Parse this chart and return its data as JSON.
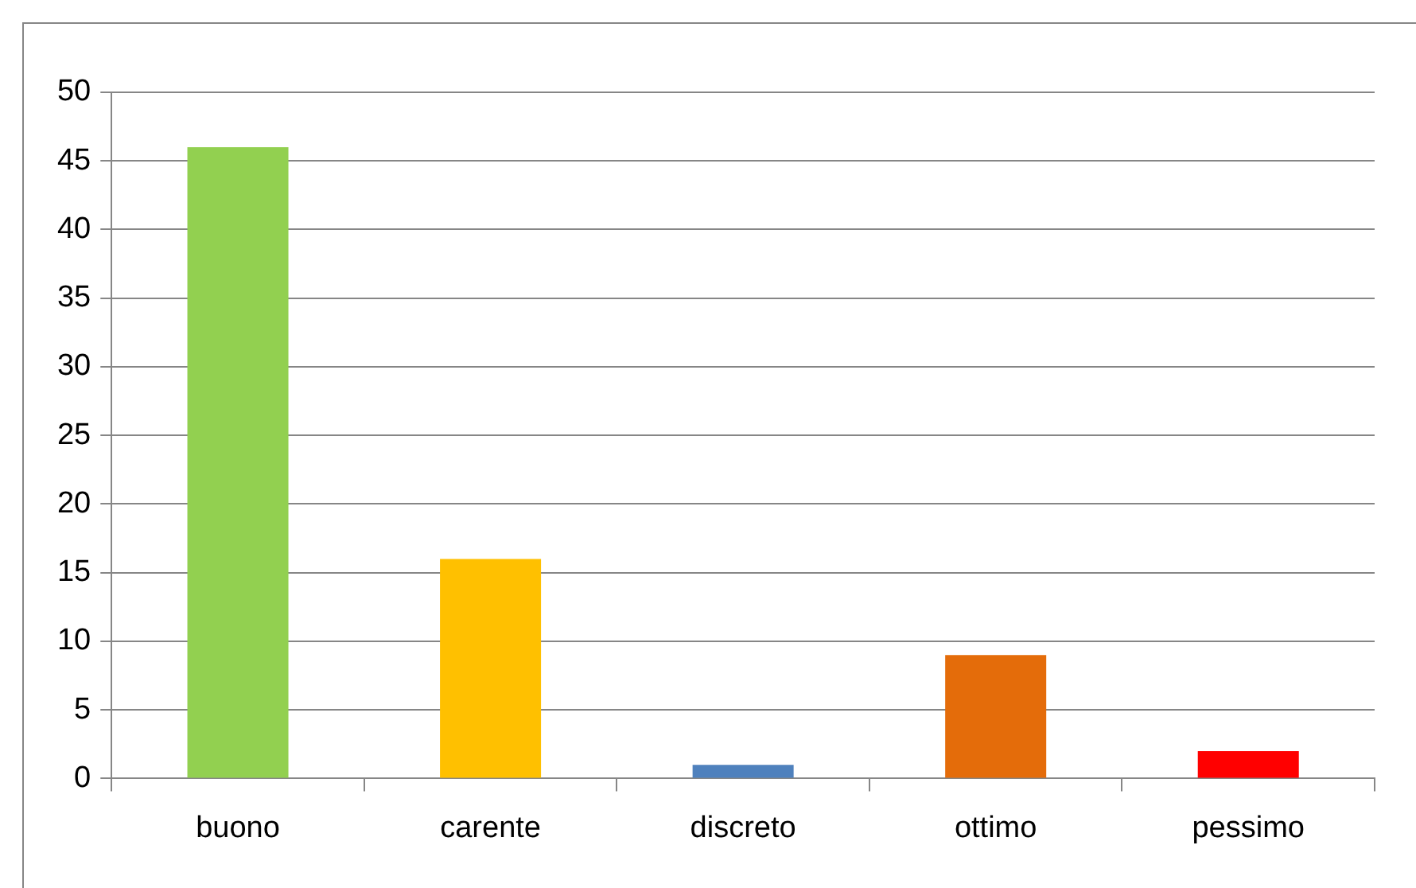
{
  "chart_data": {
    "type": "bar",
    "categories": [
      "buono",
      "carente",
      "discreto",
      "ottimo",
      "pessimo"
    ],
    "values": [
      46,
      16,
      1,
      9,
      2
    ],
    "colors": [
      "#92d050",
      "#ffc000",
      "#4f81bd",
      "#e46c0a",
      "#ff0000"
    ],
    "ylim": [
      0,
      50
    ],
    "yticks": [
      0,
      5,
      10,
      15,
      20,
      25,
      30,
      35,
      40,
      45,
      50
    ],
    "grid": "y",
    "legend": false
  }
}
